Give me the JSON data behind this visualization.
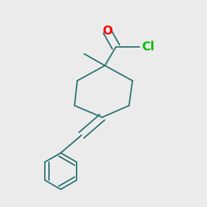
{
  "bg_color": "#ebebeb",
  "bond_color": "#2a7070",
  "O_color": "#ff0000",
  "Cl_color": "#00bb00",
  "bond_width": 1.4,
  "font_size": 12.5
}
